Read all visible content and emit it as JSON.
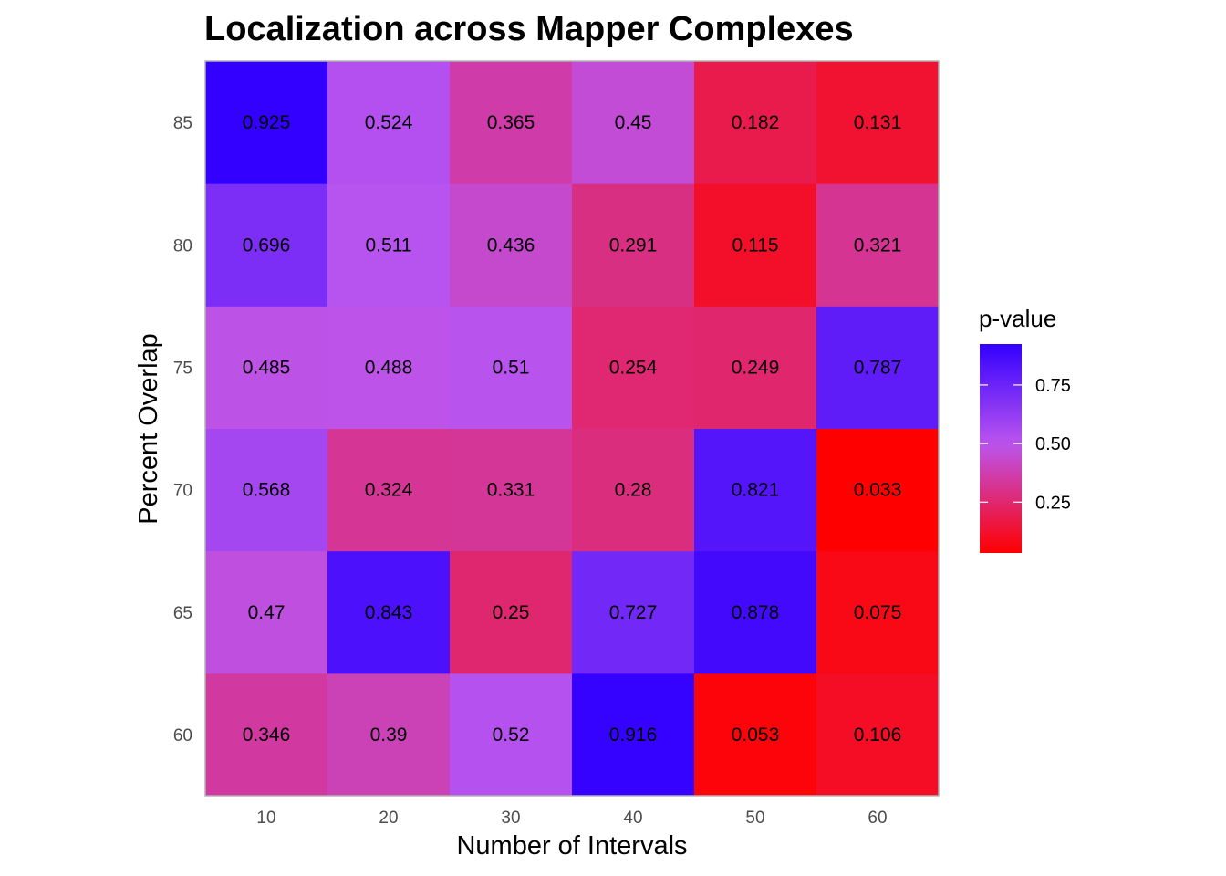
{
  "chart_data": {
    "type": "heatmap",
    "title": "Localization across Mapper Complexes",
    "xlabel": "Number of Intervals",
    "ylabel": "Percent Overlap",
    "x_categories": [
      "10",
      "20",
      "30",
      "40",
      "50",
      "60"
    ],
    "y_categories": [
      "60",
      "65",
      "70",
      "75",
      "80",
      "85"
    ],
    "values": [
      [
        0.346,
        0.39,
        0.52,
        0.916,
        0.053,
        0.106
      ],
      [
        0.47,
        0.843,
        0.25,
        0.727,
        0.878,
        0.075
      ],
      [
        0.568,
        0.324,
        0.331,
        0.28,
        0.821,
        0.033
      ],
      [
        0.485,
        0.488,
        0.51,
        0.254,
        0.249,
        0.787
      ],
      [
        0.696,
        0.511,
        0.436,
        0.291,
        0.115,
        0.321
      ],
      [
        0.925,
        0.524,
        0.365,
        0.45,
        0.182,
        0.131
      ]
    ],
    "value_labels": [
      [
        "0.346",
        "0.39",
        "0.52",
        "0.916",
        "0.053",
        "0.106"
      ],
      [
        "0.47",
        "0.843",
        "0.25",
        "0.727",
        "0.878",
        "0.075"
      ],
      [
        "0.568",
        "0.324",
        "0.331",
        "0.28",
        "0.821",
        "0.033"
      ],
      [
        "0.485",
        "0.488",
        "0.51",
        "0.254",
        "0.249",
        "0.787"
      ],
      [
        "0.696",
        "0.511",
        "0.436",
        "0.291",
        "0.115",
        "0.321"
      ],
      [
        "0.925",
        "0.524",
        "0.365",
        "0.45",
        "0.182",
        "0.131"
      ]
    ],
    "color_scale": {
      "low_color": "#ff0000",
      "mid_color": "#bb55ee",
      "high_color": "#3300ff",
      "domain": [
        0.033,
        0.925
      ],
      "mid_value": 0.5
    },
    "legend": {
      "title": "p-value",
      "ticks": [
        0.25,
        0.5,
        0.75
      ],
      "tick_labels": [
        "0.25",
        "0.50",
        "0.75"
      ],
      "position": "right"
    },
    "grid": false
  }
}
